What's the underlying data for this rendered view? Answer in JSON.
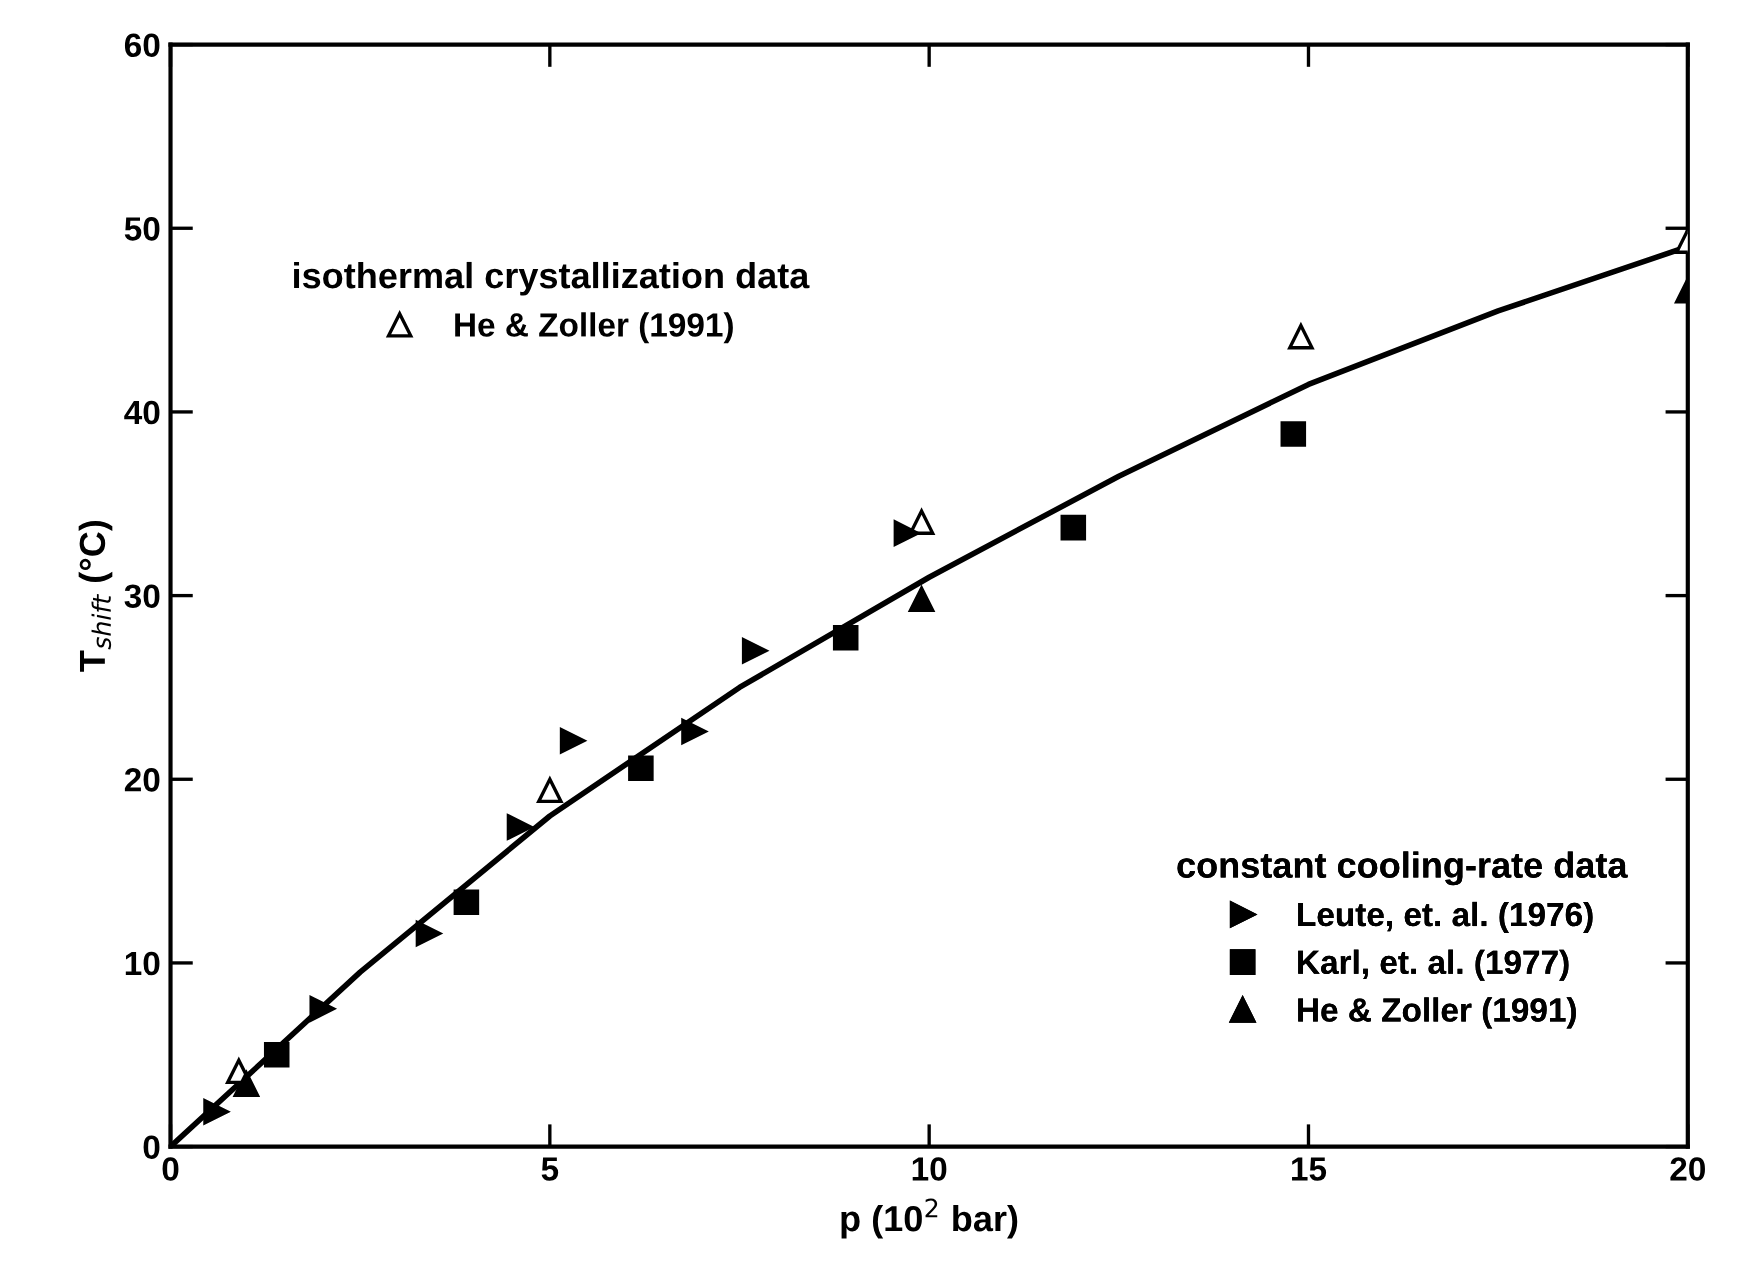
{
  "chart_data": {
    "type": "scatter",
    "xlabel": "p (10$^{2}$ bar)",
    "ylabel": "T$_{shift}$ (°C)",
    "xlim": [
      0,
      20
    ],
    "ylim": [
      0,
      60
    ],
    "xticks": [
      0,
      5,
      10,
      15,
      20
    ],
    "yticks": [
      0,
      10,
      20,
      30,
      40,
      50,
      60
    ],
    "grid": false,
    "legend": [
      "top left",
      "bottom right"
    ],
    "annotations": [
      "isothermal crystallization data",
      "constant cooling-rate data"
    ],
    "series": [
      {
        "name": "He & Zoller (1991)",
        "color": "#000000",
        "marker": "triangle-open",
        "x": [
          0.9,
          5.0,
          9.9,
          14.9,
          20.0
        ],
        "values": [
          4.1,
          19.4,
          34.0,
          44.1,
          49.3
        ]
      },
      {
        "name": "Leute, et. al. (1976)",
        "color": "#000000",
        "marker": "triangle-right",
        "x": [
          0.6,
          2.0,
          3.4,
          4.6,
          5.3,
          6.9,
          7.7,
          9.7
        ],
        "values": [
          1.9,
          7.5,
          11.6,
          17.4,
          22.1,
          22.6,
          27.0,
          33.4
        ]
      },
      {
        "name": "Karl, et. al. (1977)",
        "color": "#000000",
        "marker": "square",
        "x": [
          1.4,
          3.9,
          6.2,
          8.9,
          11.9,
          14.8
        ],
        "values": [
          5.0,
          13.3,
          20.6,
          27.7,
          33.7,
          38.8
        ]
      },
      {
        "name": "He & Zoller (1991)",
        "color": "#000000",
        "marker": "triangle",
        "x": [
          1.0,
          9.9,
          20.0
        ],
        "values": [
          3.4,
          29.8,
          46.6
        ]
      },
      {
        "type": "line",
        "color": "#000000",
        "marker": "none",
        "line_style": "solid",
        "x": [
          0,
          2.5,
          5,
          7.5,
          10,
          12.5,
          15,
          17.5,
          20
        ],
        "values": [
          0,
          9.5,
          18,
          25,
          31,
          36.5,
          41.5,
          45.5,
          49
        ]
      }
    ]
  }
}
